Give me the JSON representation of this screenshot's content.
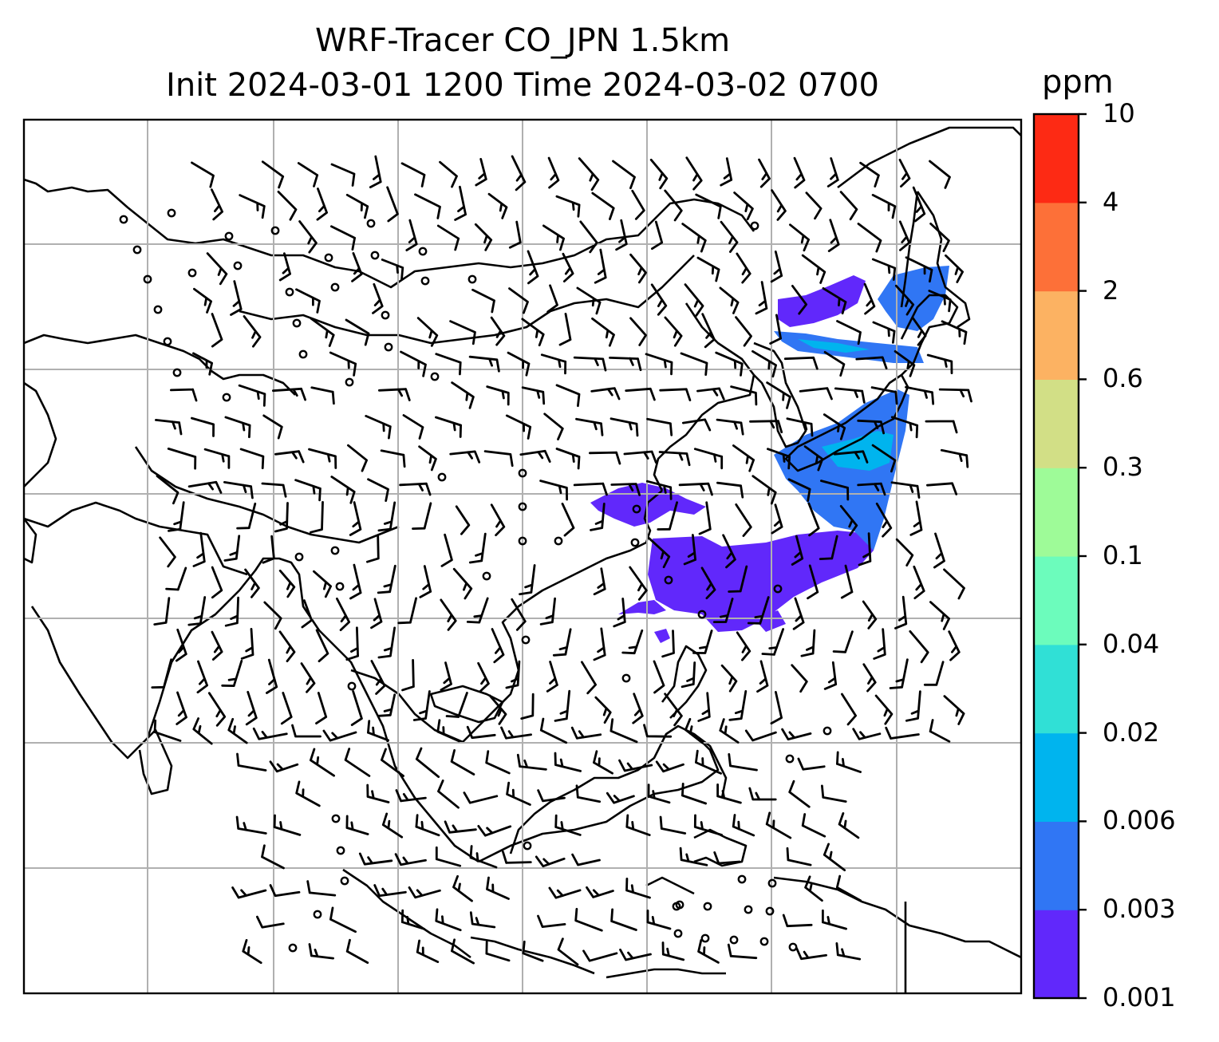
{
  "title": {
    "line1": "WRF-Tracer CO_JPN 1.5km",
    "line2": "Init 2024-03-01 1200 Time 2024-03-02 0700"
  },
  "colorbar": {
    "unit": "ppm",
    "ticks": [
      "0.001",
      "0.003",
      "0.006",
      "0.02",
      "0.04",
      "0.1",
      "0.3",
      "0.6",
      "2",
      "4",
      "10"
    ],
    "colors": [
      "#6128fb",
      "#3076f4",
      "#00b4ee",
      "#30e0d6",
      "#6cfcbc",
      "#9efb98",
      "#d2df86",
      "#fcb262",
      "#fd7038",
      "#fd2a14"
    ]
  },
  "map": {
    "coastline_color": "#000000",
    "grid_color": "#b0b0b0",
    "barb_color": "#000000",
    "plume_colors": {
      "low": "#6128fb",
      "mid": "#3076f4",
      "high": "#00b4ee"
    }
  }
}
